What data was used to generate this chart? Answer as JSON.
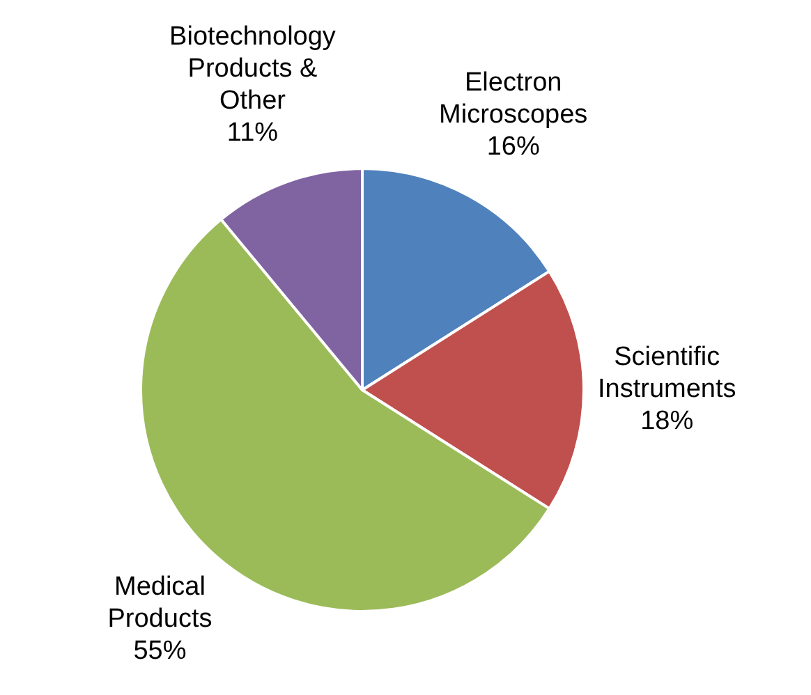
{
  "chart_data": {
    "type": "pie",
    "categories": [
      "Electron Microscopes",
      "Scientific Instruments",
      "Medical Products",
      "Biotechnology Products & Other"
    ],
    "values": [
      16,
      18,
      55,
      11
    ],
    "value_labels": [
      "16%",
      "18%",
      "55%",
      "11%"
    ],
    "colors": [
      "#4f81bd",
      "#c0504d",
      "#9bbb59",
      "#8064a2"
    ],
    "legend": false
  }
}
